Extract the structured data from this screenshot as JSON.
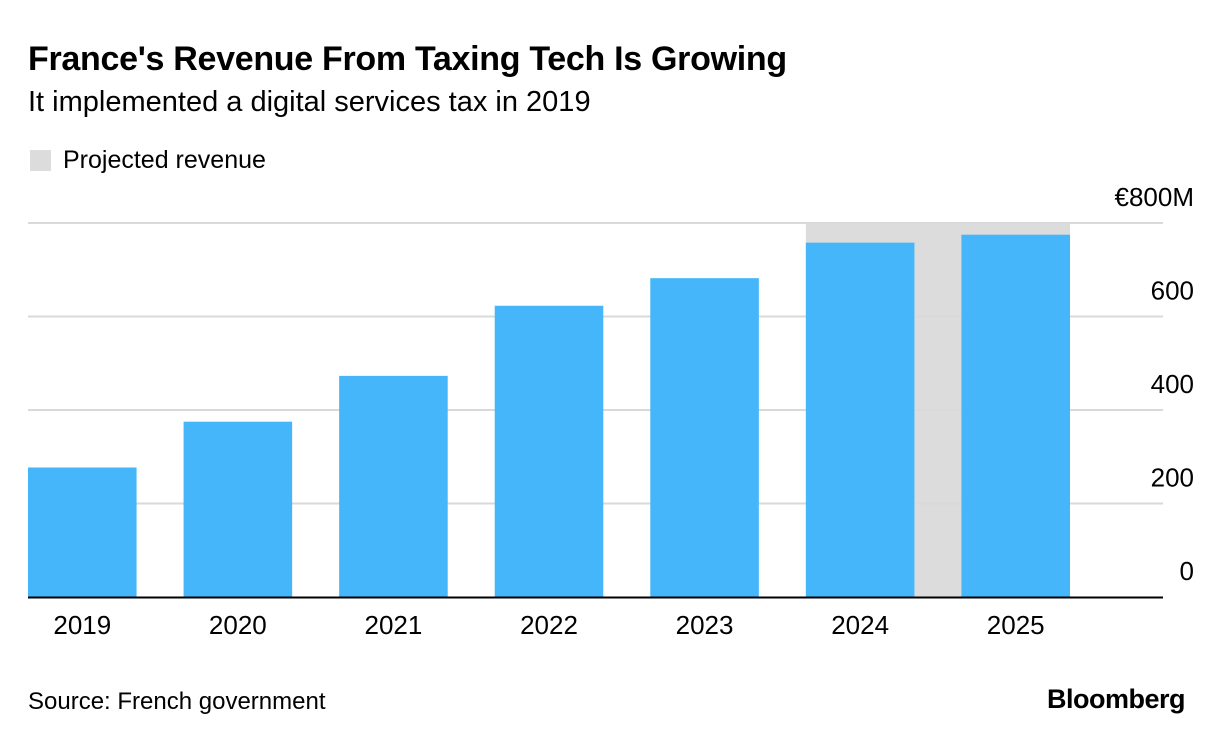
{
  "header": {
    "title": "France's Revenue From Taxing Tech Is Growing",
    "subtitle": "It implemented a digital services tax in 2019"
  },
  "legend": {
    "projected_label": "Projected revenue"
  },
  "colors": {
    "bar": "#45b6f9",
    "projected_shade": "#dcdcdc",
    "gridline": "#d9d9d9",
    "axis": "#000000"
  },
  "chart_data": {
    "type": "bar",
    "categories": [
      "2019",
      "2020",
      "2021",
      "2022",
      "2023",
      "2024",
      "2025"
    ],
    "values": [
      277,
      375,
      473,
      623,
      682,
      758,
      775
    ],
    "projected": [
      "2024",
      "2025"
    ],
    "unit": "€M",
    "ylim": [
      0,
      800
    ],
    "yticks": [
      0,
      200,
      400,
      600,
      800
    ],
    "ytick_labels": [
      "0",
      "200",
      "400",
      "600",
      "€800M"
    ],
    "y_axis_position": "right",
    "grid": true
  },
  "footer": {
    "source": "Source: French government",
    "logo_text": "Bloomberg"
  }
}
